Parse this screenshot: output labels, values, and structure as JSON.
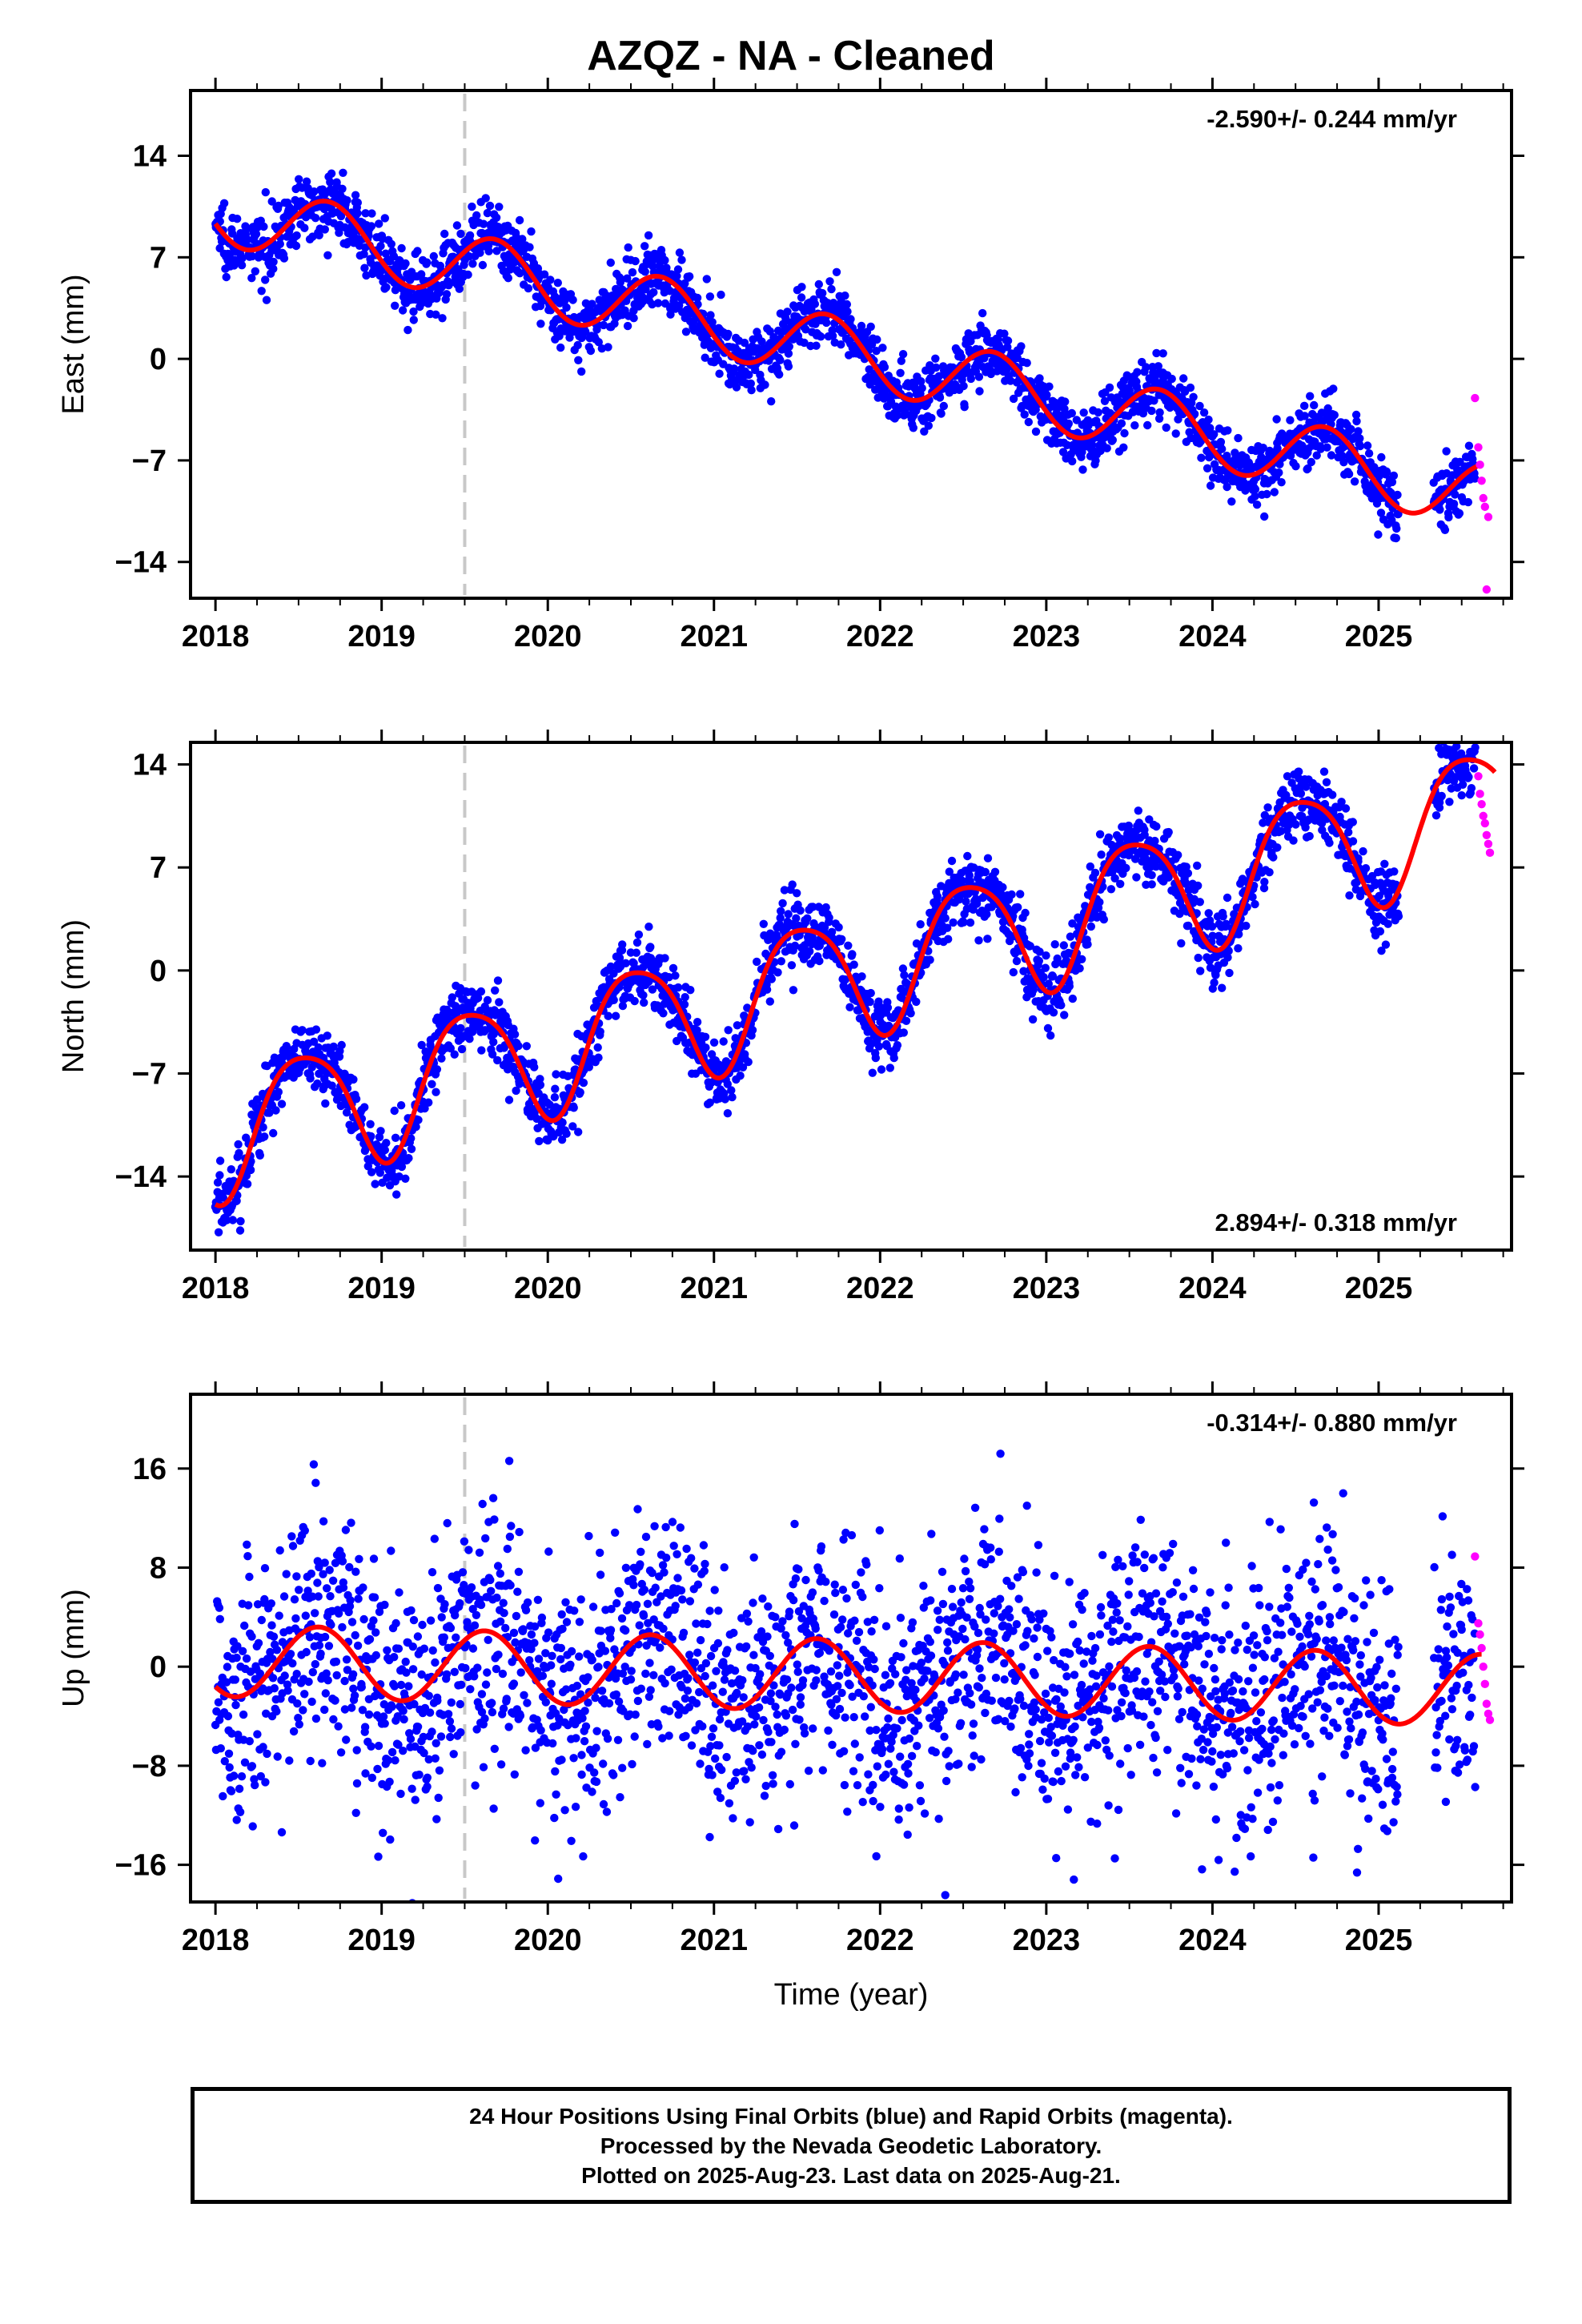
{
  "title": "AZQZ  - NA - Cleaned",
  "chart_data": [
    {
      "type": "scatter",
      "component": "East",
      "ylabel": "East (mm)",
      "xlabel": "",
      "rate_label": "-2.590+/- 0.244 mm/yr",
      "xlim": [
        2017.85,
        2025.8
      ],
      "ylim": [
        -16.5,
        18.5
      ],
      "yticks": [
        14,
        7,
        0,
        -7,
        -14
      ],
      "ytick_labels": [
        "14",
        "7",
        "0",
        "−7",
        "−14"
      ],
      "xticks": [
        2018,
        2019,
        2020,
        2021,
        2022,
        2023,
        2024,
        2025
      ],
      "xtick_labels": [
        "2018",
        "2019",
        "2020",
        "2021",
        "2022",
        "2023",
        "2024",
        "2025"
      ],
      "equipment_change": 2019.5,
      "model": {
        "intercept": 10.3,
        "rate": -2.59,
        "annual_amp": 2.3,
        "annual_peak": 0.68,
        "semiannual_amp": 0.0,
        "semiannual_peak": 0.0,
        "offset_at_change": 0.0,
        "end": 2025.62
      },
      "scatter_noise": 1.1,
      "rapid": {
        "x": [
          2025.58,
          2025.6,
          2025.61,
          2025.62,
          2025.63,
          2025.64,
          2025.65,
          2025.66
        ],
        "y": [
          -2.7,
          -6.1,
          -7.3,
          -8.4,
          -9.6,
          -10.2,
          -15.9,
          -10.9
        ]
      },
      "series": [
        {
          "name": "Final Orbits (blue)",
          "color": "#0000ff"
        },
        {
          "name": "Rapid Orbits (magenta)",
          "color": "#ff00ff"
        },
        {
          "name": "model fit",
          "color": "#ff0000"
        }
      ]
    },
    {
      "type": "scatter",
      "component": "North",
      "ylabel": "North (mm)",
      "xlabel": "",
      "rate_label": "2.894+/- 0.318 mm/yr",
      "xlim": [
        2017.85,
        2025.8
      ],
      "ylim": [
        -19,
        15.5
      ],
      "yticks": [
        14,
        7,
        0,
        -7,
        -14
      ],
      "ytick_labels": [
        "14",
        "7",
        "0",
        "−7",
        "−14"
      ],
      "xticks": [
        2018,
        2019,
        2020,
        2021,
        2022,
        2023,
        2024,
        2025
      ],
      "xtick_labels": [
        "2018",
        "2019",
        "2020",
        "2021",
        "2022",
        "2023",
        "2024",
        "2025"
      ],
      "equipment_change": 2019.5,
      "model": {
        "intercept": -11.1,
        "rate": 2.894,
        "annual_amp": 4.3,
        "annual_peak": 0.53,
        "semiannual_amp": 0.7,
        "semiannual_peak": 0.3,
        "offset_at_change": 0.0,
        "end": 2025.7
      },
      "scatter_noise": 1.2,
      "rapid": {
        "x": [
          2025.6,
          2025.61,
          2025.62,
          2025.63,
          2025.64,
          2025.65,
          2025.66,
          2025.67
        ],
        "y": [
          13.2,
          12.0,
          11.3,
          10.5,
          10.0,
          9.2,
          8.6,
          8.0
        ]
      },
      "series": [
        {
          "name": "Final Orbits (blue)",
          "color": "#0000ff"
        },
        {
          "name": "Rapid Orbits (magenta)",
          "color": "#ff00ff"
        },
        {
          "name": "model fit",
          "color": "#ff0000"
        }
      ]
    },
    {
      "type": "scatter",
      "component": "Up",
      "ylabel": "Up (mm)",
      "xlabel": "Time (year)",
      "rate_label": "-0.314+/- 0.880 mm/yr",
      "xlim": [
        2017.85,
        2025.8
      ],
      "ylim": [
        -19,
        22
      ],
      "yticks": [
        16,
        8,
        0,
        -8,
        -16
      ],
      "ytick_labels": [
        "16",
        "8",
        "0",
        "−8",
        "−16"
      ],
      "xticks": [
        2018,
        2019,
        2020,
        2021,
        2022,
        2023,
        2024,
        2025
      ],
      "xtick_labels": [
        "2018",
        "2019",
        "2020",
        "2021",
        "2022",
        "2023",
        "2024",
        "2025"
      ],
      "equipment_change": 2019.5,
      "model": {
        "intercept": 0.5,
        "rate": -0.314,
        "annual_amp": 2.9,
        "annual_peak": 0.62,
        "semiannual_amp": 0.0,
        "semiannual_peak": 0.0,
        "offset_at_change": 0.0,
        "end": 2025.62
      },
      "scatter_noise": 5.0,
      "rapid": {
        "x": [
          2025.58,
          2025.6,
          2025.61,
          2025.62,
          2025.63,
          2025.64,
          2025.65,
          2025.66,
          2025.67
        ],
        "y": [
          8.9,
          3.5,
          2.6,
          1.5,
          0.0,
          -1.4,
          -3.0,
          -3.8,
          -4.3
        ]
      },
      "series": [
        {
          "name": "Final Orbits (blue)",
          "color": "#0000ff"
        },
        {
          "name": "Rapid Orbits (magenta)",
          "color": "#ff00ff"
        },
        {
          "name": "model fit",
          "color": "#ff0000"
        }
      ]
    }
  ],
  "footer": {
    "line1": "24 Hour Positions Using Final Orbits (blue) and Rapid Orbits (magenta).",
    "line2": "Processed by the Nevada Geodetic Laboratory.",
    "line3": "Plotted on 2025-Aug-23. Last data on 2025-Aug-21."
  }
}
